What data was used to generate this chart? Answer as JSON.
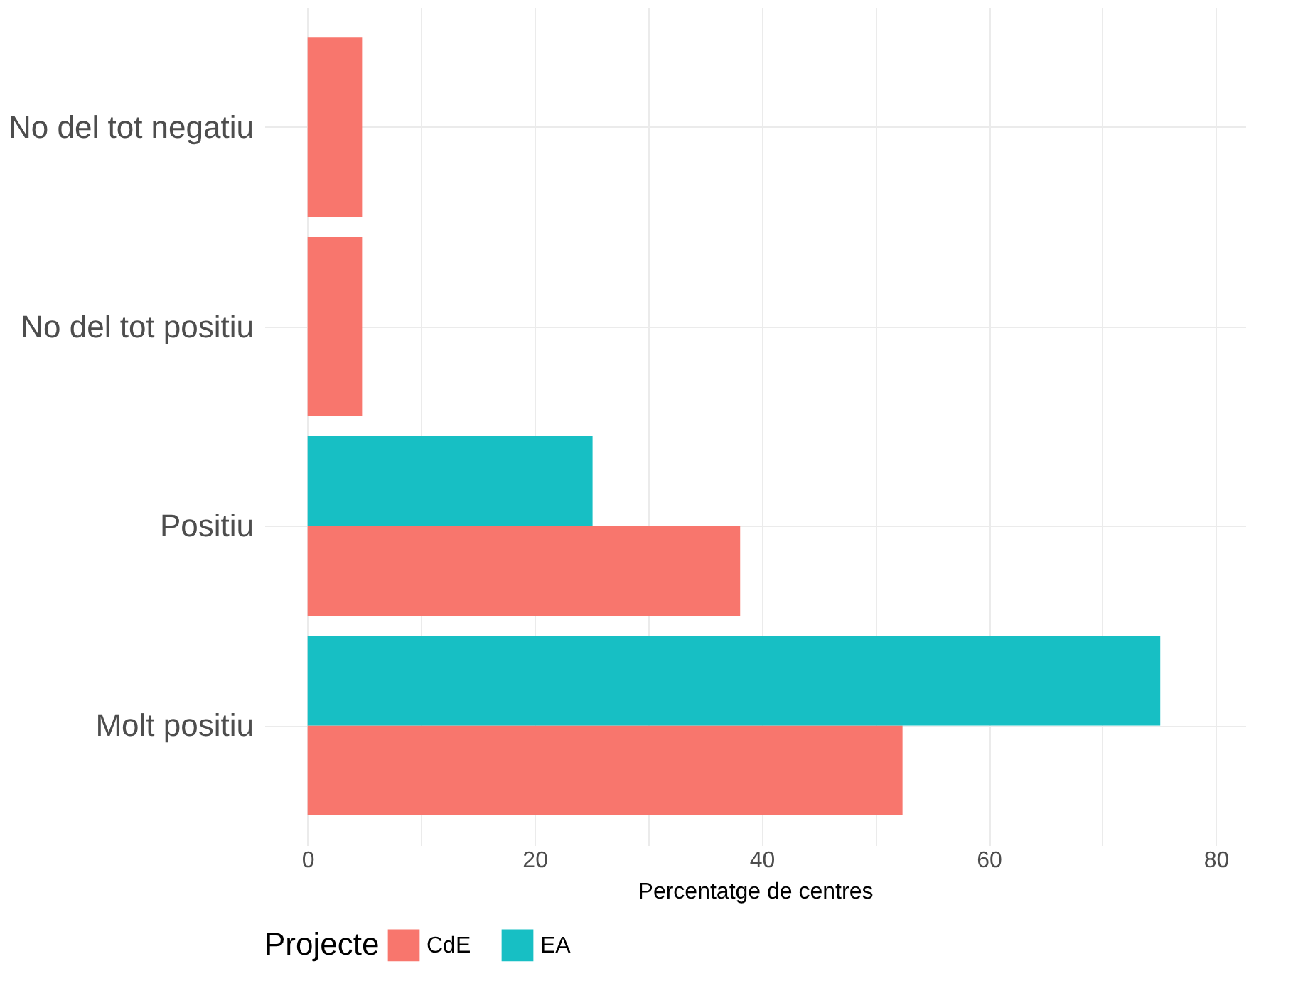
{
  "chart_data": {
    "type": "bar",
    "orientation": "horizontal",
    "xlabel": "Percentatge de centres",
    "legend_title": "Projecte",
    "categories": [
      "No del tot negatiu",
      "No del tot positiu",
      "Positiu",
      "Molt positiu"
    ],
    "series": [
      {
        "name": "CdE",
        "color": "#f8766d",
        "values": [
          4.8,
          4.8,
          38.1,
          52.4
        ]
      },
      {
        "name": "EA",
        "color": "#17bfc4",
        "values": [
          null,
          null,
          25.1,
          75.1
        ]
      }
    ],
    "xlim": [
      -3.8,
      82.6
    ],
    "xticks": [
      0,
      {
        "value": 10,
        "label": null
      },
      20,
      {
        "value": 30,
        "label": null
      },
      40,
      {
        "value": 50,
        "label": null
      },
      60,
      {
        "value": 70,
        "label": null
      },
      80
    ],
    "grid": true,
    "legend": "bottom"
  }
}
